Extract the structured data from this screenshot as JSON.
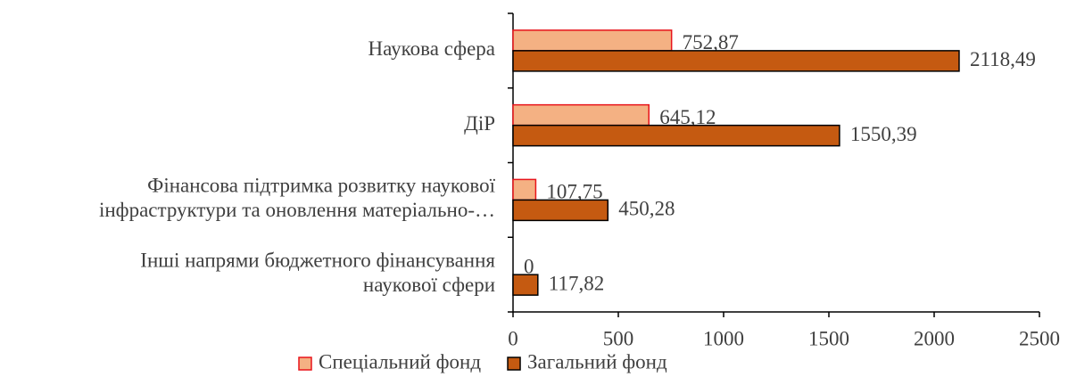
{
  "chart_data": {
    "type": "hbar",
    "categories": [
      "Наукова сфера",
      "ДіР",
      "Фінансова підтримка розвитку наукової\nінфраструктури та оновлення матеріально-…",
      "Інші напрями бюджетного фінансування\nнаукової сфери"
    ],
    "series": [
      {
        "name": "Спеціальний фонд",
        "color": "#F4B183",
        "edge": "#E8141B",
        "values": [
          752.87,
          645.12,
          107.75,
          0
        ],
        "value_labels": [
          "752,87",
          "645,12",
          "107,75",
          "0"
        ]
      },
      {
        "name": "Загальний фонд",
        "color": "#C55A11",
        "edge": "#000000",
        "values": [
          2118.49,
          1550.39,
          450.28,
          117.82
        ],
        "value_labels": [
          "2118,49",
          "1550,39",
          "450,28",
          "117,82"
        ]
      }
    ],
    "xlim": [
      0,
      2500
    ],
    "xticks": [
      0,
      500,
      1000,
      1500,
      2000,
      2500
    ],
    "legend": "bottom"
  }
}
